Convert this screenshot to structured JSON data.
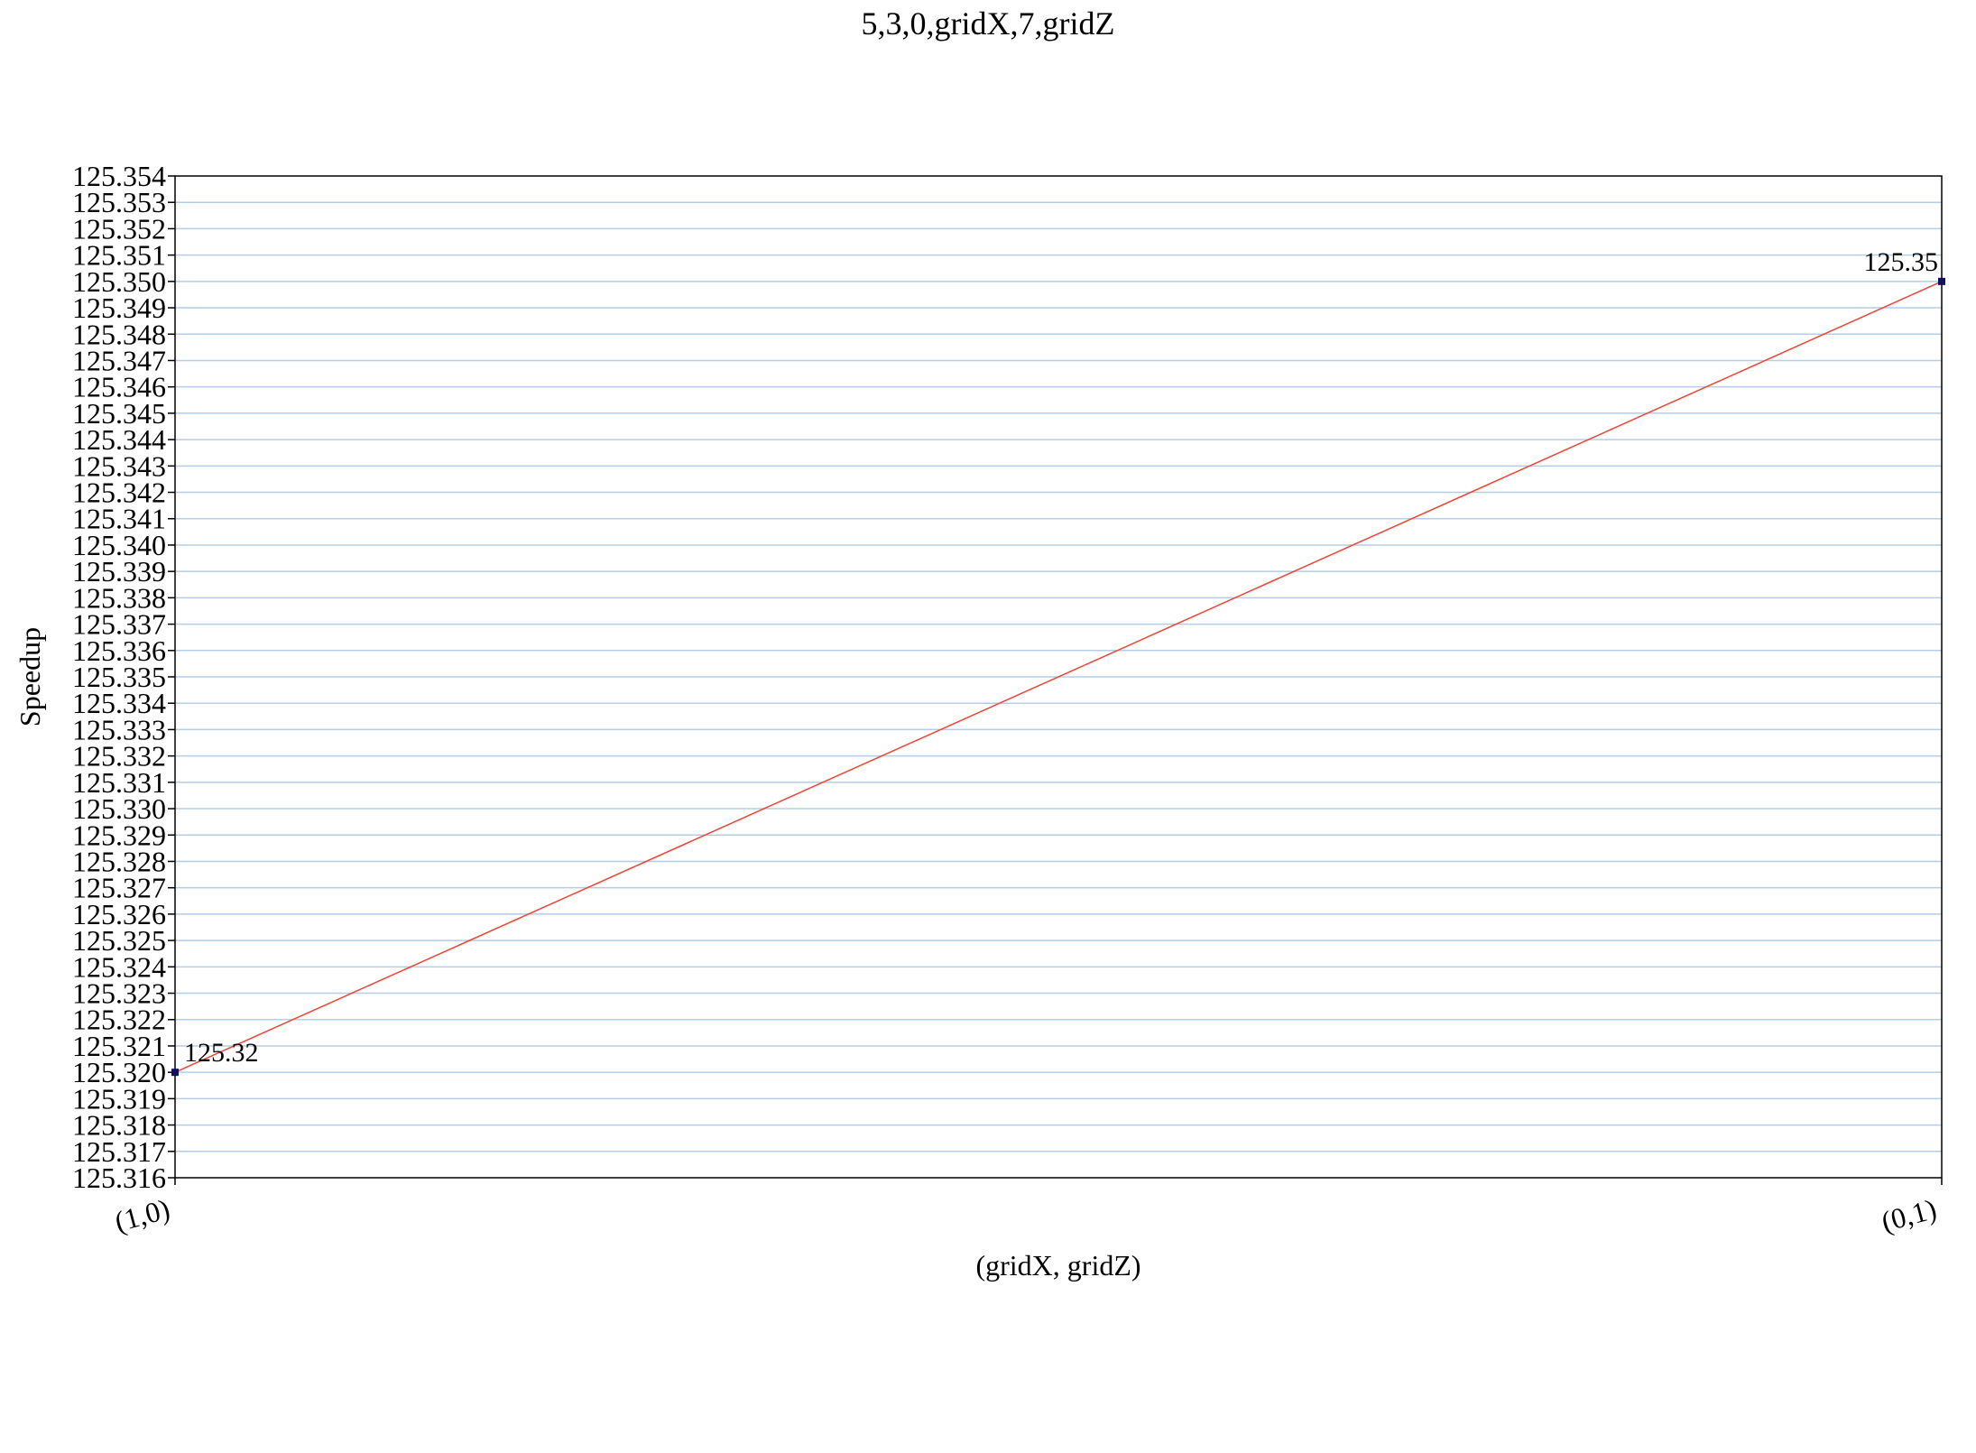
{
  "chart_data": {
    "type": "line",
    "title": "5,3,0,gridX,7,gridZ",
    "xlabel": "(gridX, gridZ)",
    "ylabel": "Speedup",
    "categories": [
      "(1,0)",
      "(0,1)"
    ],
    "series": [
      {
        "values": [
          125.32,
          125.35
        ],
        "data_labels": [
          "125.32",
          "125.35"
        ]
      }
    ],
    "ylim": [
      125.316,
      125.354
    ],
    "y_tick_step": 0.001,
    "grid": true,
    "legend": "none",
    "colors": {
      "line": "#ee4433",
      "marker": "#101060",
      "grid": "#b4cde8",
      "axis": "#000000"
    }
  }
}
